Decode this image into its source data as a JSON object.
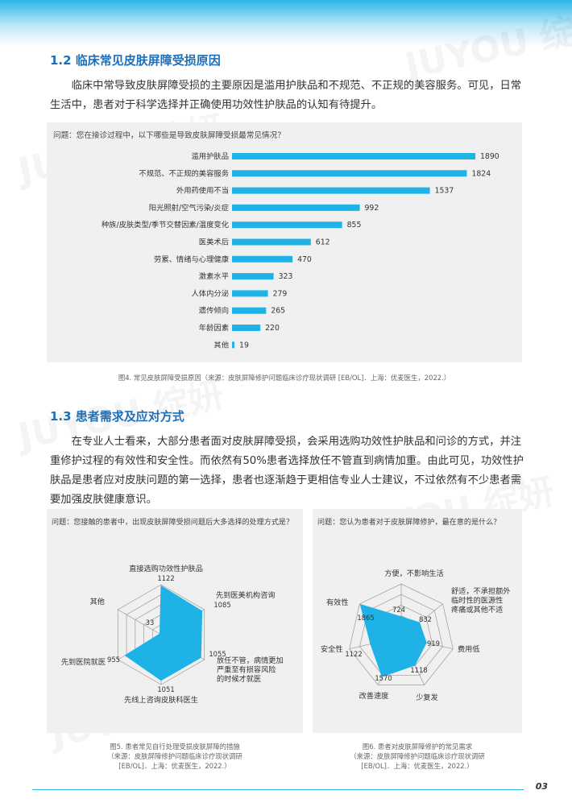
{
  "watermark": "JUYOU 绽妍",
  "section1": {
    "title": "1.2  临床常见皮肤屏障受损原因",
    "paragraph": "临床中常导致皮肤屏障受损的主要原因是滥用护肤品和不规范、不正规的美容服务。可见，日常生活中，患者对于科学选择并正确使用功效性护肤品的认知有待提升。"
  },
  "fig4": {
    "question": "问题：您在接诊过程中，以下哪些是导致皮肤屏障受损最常见情况？",
    "caption": "图4. 常见皮肤屏障受损原因（来源：皮肤屏障修护问题临床诊疗现状调研 [EB/OL]．上海：优麦医生，2022.）"
  },
  "section2": {
    "title": "1.3  患者需求及应对方式",
    "paragraph": "在专业人士看来，大部分患者面对皮肤屏障受损，会采用选购功效性护肤品和问诊的方式，并注重修护过程的有效性和安全性。而依然有50%患者选择放任不管直到病情加重。由此可见，功效性护肤品是患者应对皮肤问题的第一选择，患者也逐渐趋于更相信专业人士建议，不过依然有不少患者需要加强皮肤健康意识。"
  },
  "fig5": {
    "question": "问题：您接触的患者中，出现皮肤屏障受损问题后大多选择的处理方式是？",
    "caption": [
      "图5. 患者常见自行处理受损皮肤屏障的措施",
      "（来源：皮肤屏障修护问题临床诊疗现状调研",
      "[EB/OL]．上海：优麦医生，2022.）"
    ]
  },
  "fig6": {
    "question": "问题：您认为患者对于皮肤屏障修护，最在意的是什么？",
    "caption": [
      "图6. 患者对皮肤屏障修护的常见需求",
      "（来源：皮肤屏障修护问题临床诊疗现状调研",
      "[EB/OL]．上海：优麦医生，2022.）"
    ]
  },
  "page_number": "03",
  "colors": {
    "bar": "#1fb2e6",
    "title": "#1e6fb8",
    "panel": "#f0f0f0"
  },
  "chart_data": [
    {
      "type": "bar",
      "orientation": "horizontal",
      "categories": [
        "滥用护肤品",
        "不规范、不正规的美容服务",
        "外用药使用不当",
        "阳光照射/空气污染/炎症",
        "种族/皮肤类型/季节交替因素/温度变化",
        "医美术后",
        "劳累、情绪与心理健康",
        "激素水平",
        "人体内分泌",
        "遗传倾向",
        "年龄因素",
        "其他"
      ],
      "values": [
        1890,
        1824,
        1537,
        992,
        855,
        612,
        470,
        323,
        279,
        265,
        220,
        19
      ]
    },
    {
      "type": "radar",
      "categories": [
        "直接选购功效性护肤品",
        "先到医美机构咨询",
        "放任不管，病情更加严重至有损容风险的时候才就医",
        "先线上咨询皮肤科医生",
        "先到医院就医",
        "其他"
      ],
      "values": [
        1122,
        1085,
        1055,
        1051,
        955,
        33
      ]
    },
    {
      "type": "radar",
      "categories": [
        "方便，不影响生活",
        "舒适，不承担额外临时性的医源性疼痛或其他不适",
        "费用低",
        "少复发",
        "改善速度",
        "安全性",
        "有效性"
      ],
      "values": [
        724,
        832,
        919,
        1118,
        1570,
        1122,
        1865
      ]
    }
  ]
}
